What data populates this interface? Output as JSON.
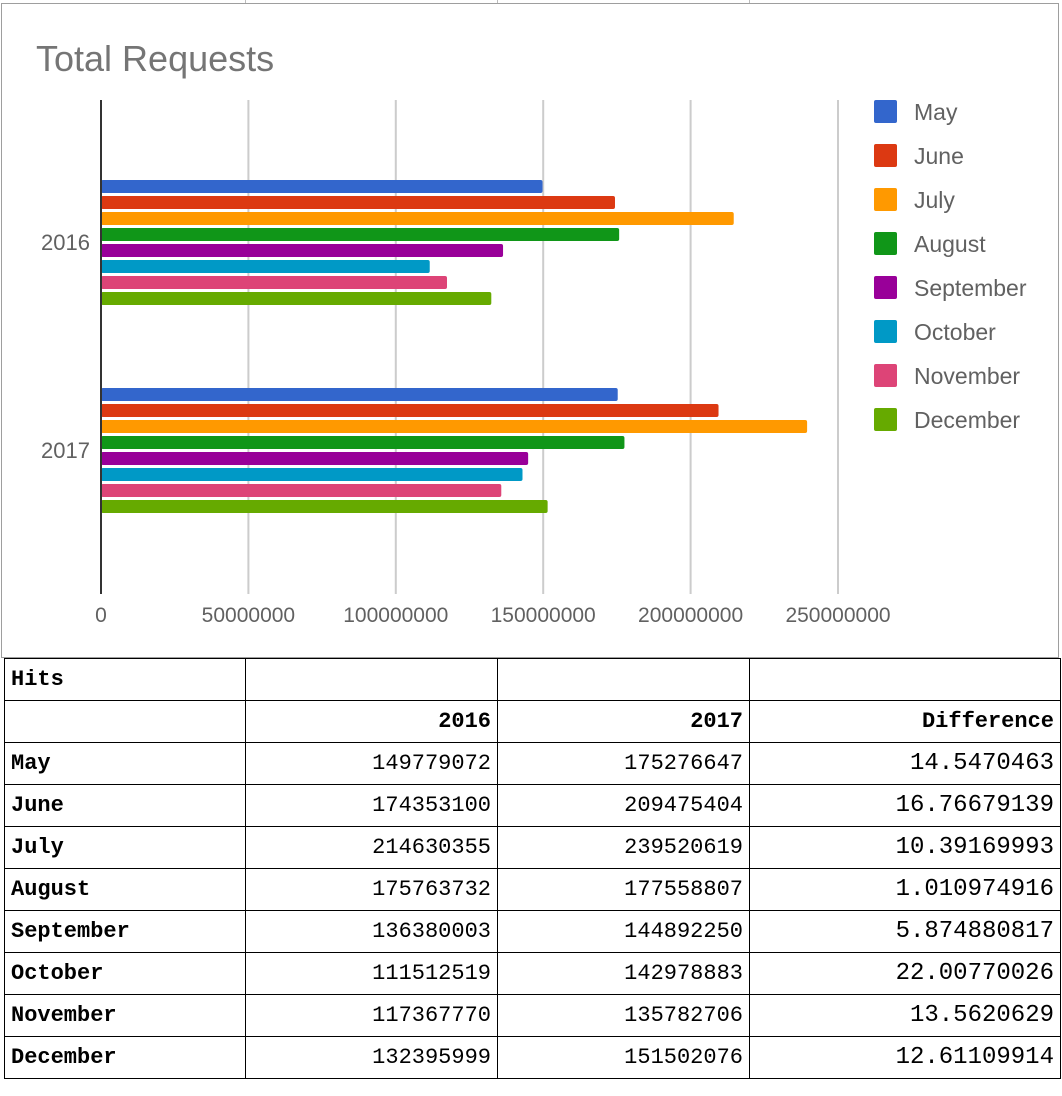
{
  "chart_data": {
    "type": "bar",
    "orientation": "horizontal",
    "title": "Total Requests",
    "categories": [
      "2016",
      "2017"
    ],
    "series": [
      {
        "name": "May",
        "color": "#3366cc",
        "values": [
          149779072,
          175276647
        ]
      },
      {
        "name": "June",
        "color": "#dc3912",
        "values": [
          174353100,
          209475404
        ]
      },
      {
        "name": "July",
        "color": "#ff9900",
        "values": [
          214630355,
          239520619
        ]
      },
      {
        "name": "August",
        "color": "#109618",
        "values": [
          175763732,
          177558807
        ]
      },
      {
        "name": "September",
        "color": "#990099",
        "values": [
          136380003,
          144892250
        ]
      },
      {
        "name": "October",
        "color": "#0099c6",
        "values": [
          111512519,
          142978883
        ]
      },
      {
        "name": "November",
        "color": "#dd4477",
        "values": [
          117367770,
          135782706
        ]
      },
      {
        "name": "December",
        "color": "#66aa00",
        "values": [
          132395999,
          151502076
        ]
      }
    ],
    "xlim": [
      0,
      250000000
    ],
    "xticks": [
      "0",
      "50000000",
      "100000000",
      "150000000",
      "200000000",
      "250000000"
    ],
    "grid": true,
    "legend_position": "right"
  },
  "table": {
    "title": "Hits",
    "headers": [
      "",
      "2016",
      "2017",
      "Difference"
    ],
    "rows": [
      [
        "May",
        "149779072",
        "175276647",
        "14.5470463"
      ],
      [
        "June",
        "174353100",
        "209475404",
        "16.76679139"
      ],
      [
        "July",
        "214630355",
        "239520619",
        "10.39169993"
      ],
      [
        "August",
        "175763732",
        "177558807",
        "1.010974916"
      ],
      [
        "September",
        "136380003",
        "144892250",
        "5.874880817"
      ],
      [
        "October",
        "111512519",
        "142978883",
        "22.00770026"
      ],
      [
        "November",
        "117367770",
        "135782706",
        "13.5620629"
      ],
      [
        "December",
        "132395999",
        "151502076",
        "12.61109914"
      ]
    ]
  }
}
